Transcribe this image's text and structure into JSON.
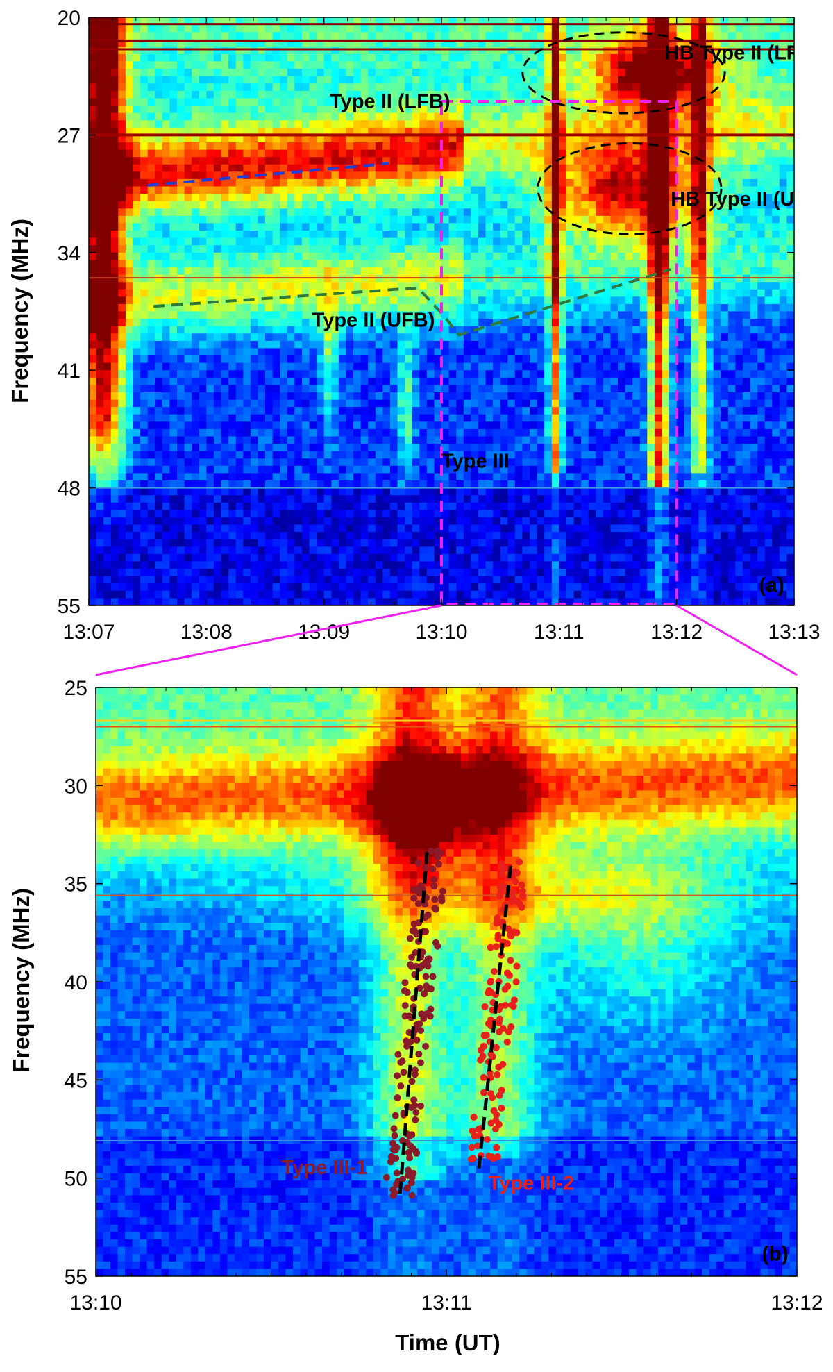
{
  "chart_data": [
    {
      "type": "heatmap",
      "panel_label": "(a)",
      "ylabel": "Frequency (MHz)",
      "xlabel": "",
      "x_ticks": [
        "13:07",
        "13:08",
        "13:09",
        "13:10",
        "13:11",
        "13:12",
        "13:13"
      ],
      "x_range_min": [
        0,
        6
      ],
      "y_ticks": [
        "20",
        "27",
        "34",
        "41",
        "48",
        "55"
      ],
      "y_range_mhz": [
        20,
        55
      ],
      "y_inverted": true,
      "annotations": [
        {
          "text": "Type II (LFB)",
          "color": "#000000",
          "x_min": 2.05,
          "y_mhz": 25.4
        },
        {
          "text": "HB Type II (LFB)",
          "color": "#000000",
          "x_min": 4.9,
          "y_mhz": 22.5
        },
        {
          "text": "HB Type II (UFB)",
          "color": "#000000",
          "x_min": 4.95,
          "y_mhz": 31.2
        },
        {
          "text": "Type II (UFB)",
          "color": "#000000",
          "x_min": 1.9,
          "y_mhz": 38.4
        },
        {
          "text": "Type III",
          "color": "#000000",
          "x_min": 3.0,
          "y_mhz": 46.8
        },
        {
          "text": "(a)",
          "color": "#000000",
          "x_min": 5.7,
          "y_mhz": 54.2
        }
      ],
      "dashed_lines": [
        {
          "name": "lfb-fit",
          "color": "#1f3fd8",
          "points": [
            [
              0.5,
              30.0
            ],
            [
              2.55,
              28.7
            ]
          ]
        },
        {
          "name": "ufb-fit",
          "color": "#2f7a3a",
          "points": [
            [
              0.55,
              37.2
            ],
            [
              2.8,
              36.1
            ],
            [
              3.0,
              37.6
            ],
            [
              3.15,
              38.9
            ],
            [
              4.95,
              35.0
            ]
          ]
        }
      ],
      "ellipses": [
        {
          "name": "hb-lfb-region",
          "color": "#000000",
          "cx_min": 4.55,
          "cy_mhz": 23.3,
          "rx_min": 0.86,
          "ry_mhz": 2.4
        },
        {
          "name": "hb-ufb-region",
          "color": "#000000",
          "cx_min": 4.6,
          "cy_mhz": 30.2,
          "rx_min": 0.78,
          "ry_mhz": 2.7
        }
      ],
      "zoom_box": {
        "color": "#ee22ee",
        "x_min": [
          3.0,
          5.0
        ],
        "y_mhz": [
          25.0,
          55.0
        ]
      }
    },
    {
      "type": "heatmap",
      "panel_label": "(b)",
      "ylabel": "Frequency (MHz)",
      "xlabel": "Time (UT)",
      "x_ticks": [
        "13:10",
        "13:11",
        "13:12"
      ],
      "x_range_min": [
        0,
        2
      ],
      "y_ticks": [
        "25",
        "30",
        "35",
        "40",
        "45",
        "50",
        "55"
      ],
      "y_range_mhz": [
        25,
        55
      ],
      "y_inverted": true,
      "annotations": [
        {
          "text": "Type III-1",
          "color": "#8b1a2b",
          "x_min": 0.53,
          "y_mhz": 49.8
        },
        {
          "text": "Type III-2",
          "color": "#e8201c",
          "x_min": 1.12,
          "y_mhz": 50.6
        },
        {
          "text": "(b)",
          "color": "#000000",
          "x_min": 1.9,
          "y_mhz": 54.2
        }
      ],
      "fit_lines": [
        {
          "name": "type-iii-1-fit",
          "color": "#000000",
          "points": [
            [
              0.868,
              50.8
            ],
            [
              0.945,
              33.4
            ]
          ]
        },
        {
          "name": "type-iii-2-fit",
          "color": "#000000",
          "points": [
            [
              1.093,
              49.5
            ],
            [
              1.185,
              33.8
            ]
          ]
        }
      ],
      "scatter_series": [
        {
          "name": "Type III-1",
          "color": "#8b1a2b",
          "t_range_min": [
            0.83,
            0.96
          ],
          "y_range_mhz": [
            33.2,
            50.9
          ],
          "drift_start": [
            0.962,
            33.2
          ],
          "drift_end": [
            0.862,
            50.9
          ],
          "count": 150
        },
        {
          "name": "Type III-2",
          "color": "#e8201c",
          "t_range_min": [
            1.03,
            1.22
          ],
          "y_range_mhz": [
            33.7,
            49.1
          ],
          "drift_start": [
            1.195,
            33.7
          ],
          "drift_end": [
            1.105,
            49.1
          ],
          "count": 130
        }
      ]
    }
  ],
  "colors": {
    "zoom_connector": "#ee22ee",
    "background_low": "#0b2fc7",
    "background_high": "#8a0000"
  }
}
